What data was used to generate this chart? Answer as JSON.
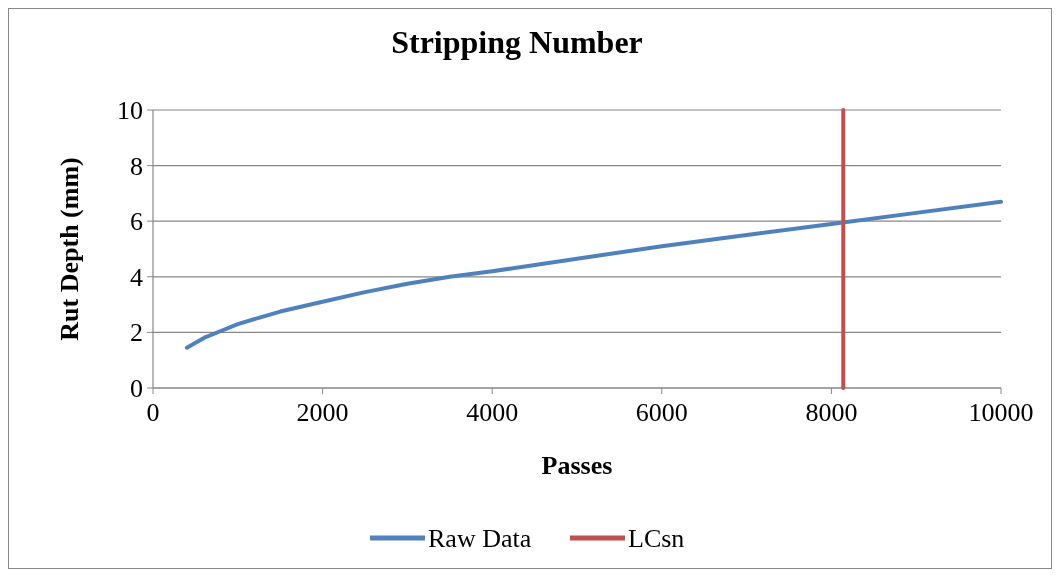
{
  "chart_data": {
    "type": "line",
    "title": "Stripping Number",
    "xlabel": "Passes",
    "ylabel": "Rut Depth (mm)",
    "xlim": [
      0,
      10000
    ],
    "xticks": [
      0,
      2000,
      4000,
      6000,
      8000,
      10000
    ],
    "ylim": [
      0,
      10
    ],
    "yticks": [
      0,
      2,
      4,
      6,
      8,
      10
    ],
    "grid": "y",
    "legend": "bottom",
    "marker": "none",
    "line_style": "solid",
    "series": [
      {
        "name": "Raw Data",
        "color": "#4f81bd",
        "x": [
          400,
          600,
          800,
          1000,
          1500,
          2000,
          2500,
          3000,
          3500,
          4000,
          5000,
          6000,
          7000,
          8000,
          9000,
          10000
        ],
        "values": [
          1.45,
          1.8,
          2.05,
          2.3,
          2.75,
          3.1,
          3.45,
          3.75,
          4.0,
          4.2,
          4.65,
          5.1,
          5.5,
          5.9,
          6.3,
          6.7
        ]
      },
      {
        "name": "LCsn",
        "color": "#c0504d",
        "x": [
          8140,
          8140
        ],
        "values": [
          0,
          10
        ]
      }
    ]
  }
}
